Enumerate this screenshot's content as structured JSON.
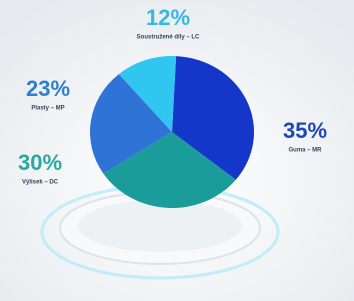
{
  "chart_data": {
    "type": "pie",
    "categories": [
      "Guma – MR",
      "Výlisek – DC",
      "Plasty – MP",
      "Soustružené díly – LC"
    ],
    "values": [
      35,
      30,
      23,
      12
    ],
    "value_labels": [
      "35%",
      "30%",
      "23%",
      "12%"
    ],
    "colors": [
      "#1537c9",
      "#1a9c9a",
      "#2f73d6",
      "#30c6ef"
    ]
  }
}
